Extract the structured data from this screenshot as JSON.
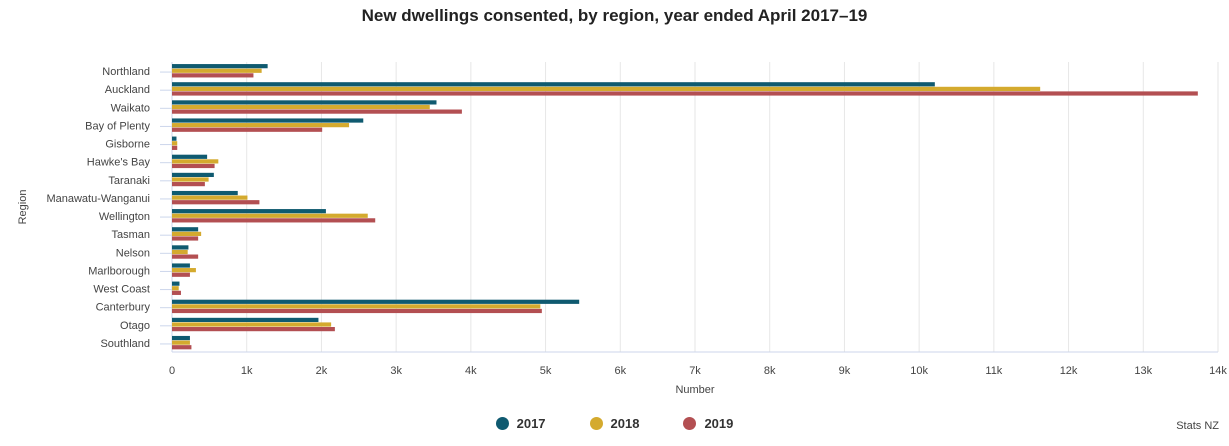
{
  "chart_data": {
    "type": "bar",
    "orientation": "horizontal",
    "title": "New dwellings consented, by region, year ended April 2017–19",
    "xlabel": "Number",
    "ylabel": "Region",
    "xlim": [
      0,
      14000
    ],
    "xticks": [
      "0",
      "1k",
      "2k",
      "3k",
      "4k",
      "5k",
      "6k",
      "7k",
      "8k",
      "9k",
      "10k",
      "11k",
      "12k",
      "13k",
      "14k"
    ],
    "grid": true,
    "legend_position": "bottom",
    "categories": [
      "Northland",
      "Auckland",
      "Waikato",
      "Bay of Plenty",
      "Gisborne",
      "Hawke's Bay",
      "Taranaki",
      "Manawatu-Wanganui",
      "Wellington",
      "Tasman",
      "Nelson",
      "Marlborough",
      "West Coast",
      "Canterbury",
      "Otago",
      "Southland"
    ],
    "series": [
      {
        "name": "2017",
        "color": "#0f5a70",
        "values": [
          1280,
          10210,
          3540,
          2560,
          60,
          470,
          560,
          880,
          2060,
          350,
          220,
          240,
          100,
          5450,
          1960,
          240
        ]
      },
      {
        "name": "2018",
        "color": "#d4aa2e",
        "values": [
          1200,
          11620,
          3450,
          2370,
          70,
          620,
          490,
          1010,
          2620,
          390,
          210,
          320,
          90,
          4930,
          2130,
          240
        ]
      },
      {
        "name": "2019",
        "color": "#b34f52",
        "values": [
          1090,
          13730,
          3880,
          2010,
          70,
          570,
          440,
          1170,
          2720,
          350,
          350,
          240,
          120,
          4950,
          2180,
          260
        ]
      }
    ],
    "credit": "Stats NZ"
  }
}
